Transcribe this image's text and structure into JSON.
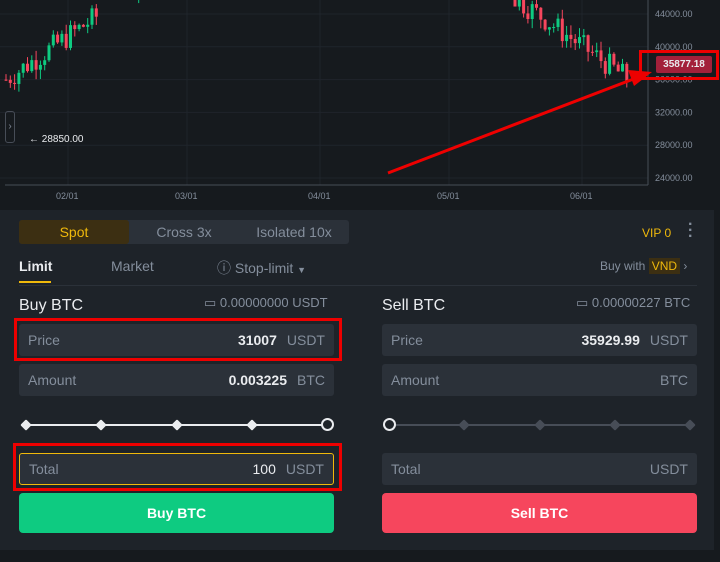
{
  "chart_data": {
    "type": "candlestick",
    "y_ticks": [
      "44000.00",
      "40000.00",
      "36000.00",
      "32000.00",
      "28000.00",
      "24000.00"
    ],
    "x_ticks": [
      "02/01",
      "03/01",
      "04/01",
      "05/01",
      "06/01"
    ],
    "current_price": "35877.18",
    "low_marker": "28850.00",
    "colors": {
      "up": "#0ecb81",
      "down": "#f6465d",
      "current": "#a3203a"
    }
  },
  "trade": {
    "modes": [
      "Spot",
      "Cross 3x",
      "Isolated 10x"
    ],
    "vip": "VIP 0",
    "order_tabs": {
      "limit": "Limit",
      "market": "Market",
      "stop_limit": "Stop-limit"
    },
    "buy_with": "Buy with",
    "currency": "VND",
    "buy": {
      "title": "Buy BTC",
      "balance": "0.00000000 USDT",
      "price_label": "Price",
      "price": "31007",
      "price_unit": "USDT",
      "amount_label": "Amount",
      "amount": "0.003225",
      "amount_unit": "BTC",
      "total_label": "Total",
      "total": "100",
      "total_unit": "USDT",
      "button": "Buy BTC",
      "slider_percent": 100
    },
    "sell": {
      "title": "Sell BTC",
      "balance": "0.00000227 BTC",
      "price_label": "Price",
      "price": "35929.99",
      "price_unit": "USDT",
      "amount_label": "Amount",
      "amount_unit": "BTC",
      "total_label": "Total",
      "total_unit": "USDT",
      "button": "Sell BTC",
      "slider_percent": 0
    }
  }
}
